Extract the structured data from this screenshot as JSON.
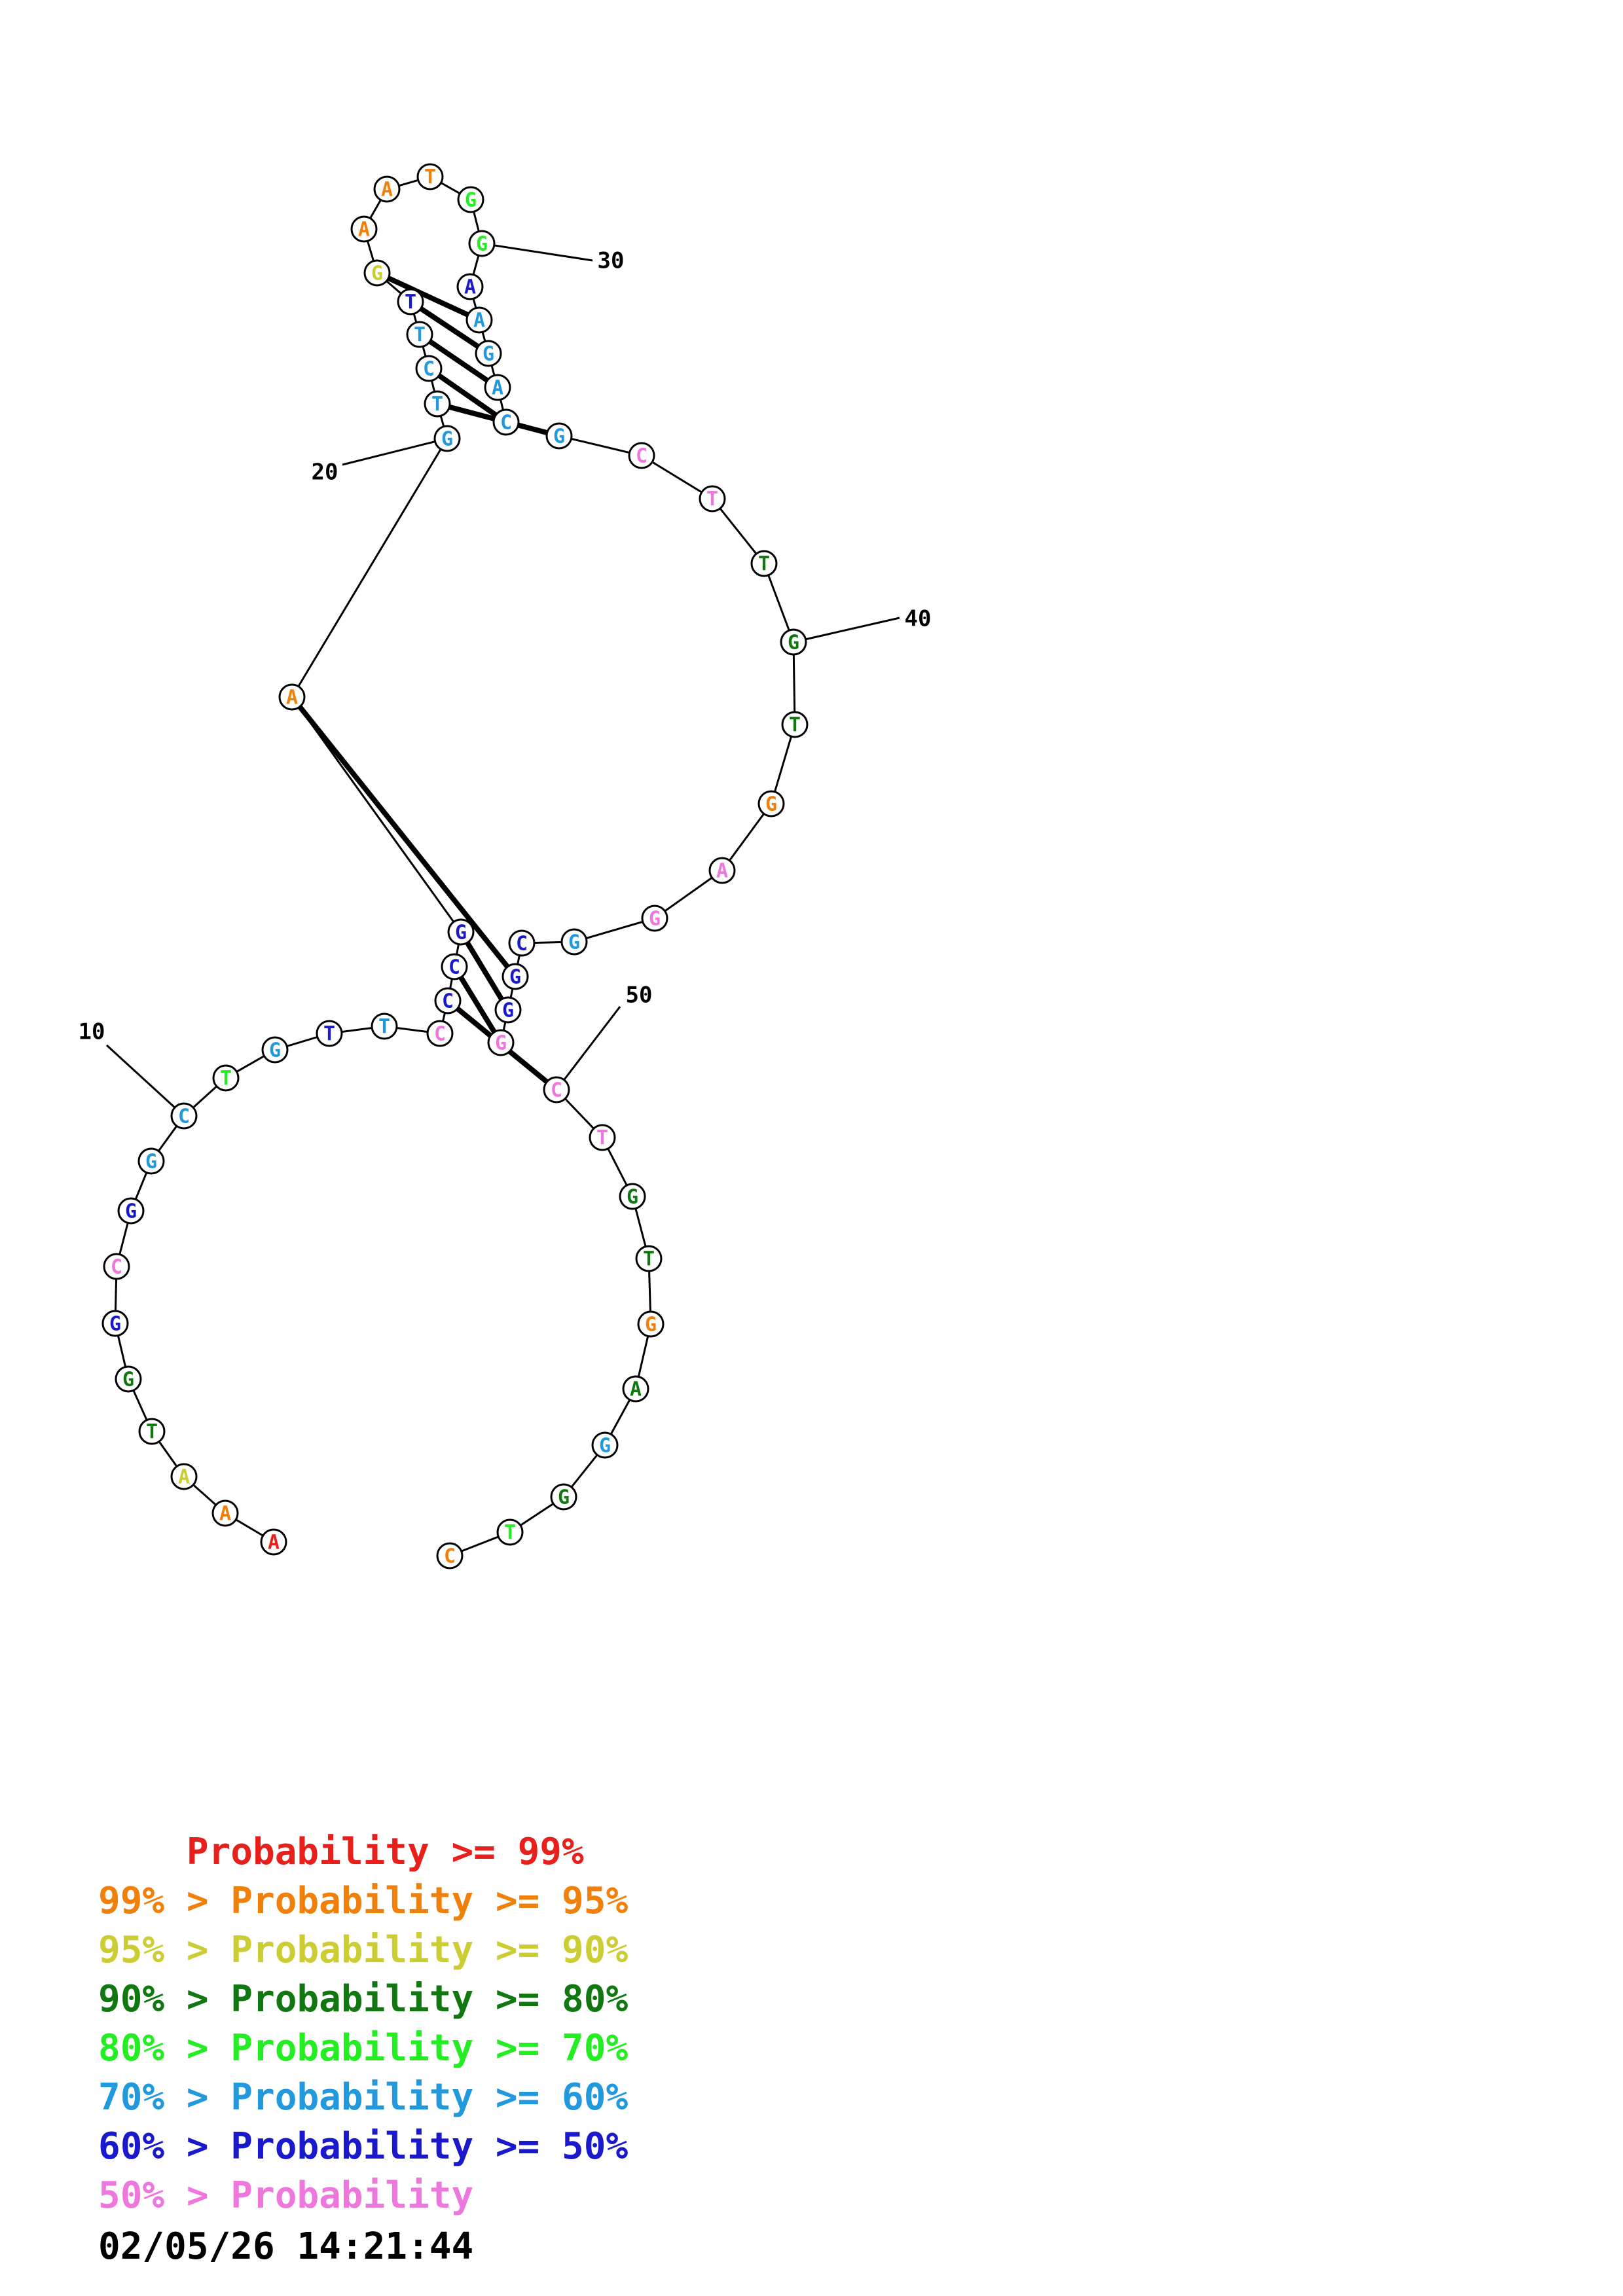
{
  "colors": {
    "red": "#e8201c",
    "orange": "#f0800a",
    "yellow": "#cccc33",
    "darkgreen": "#117711",
    "green": "#22ee22",
    "cyan": "#2299dd",
    "blue": "#1a1acc",
    "pink": "#ee77dd"
  },
  "structure": {
    "nucleotides": [
      {
        "base": "A",
        "color": "red"
      },
      {
        "base": "A",
        "color": "orange"
      },
      {
        "base": "A",
        "color": "yellow"
      },
      {
        "base": "T",
        "color": "darkgreen"
      },
      {
        "base": "G",
        "color": "darkgreen"
      },
      {
        "base": "G",
        "color": "blue"
      },
      {
        "base": "C",
        "color": "pink"
      },
      {
        "base": "G",
        "color": "blue"
      },
      {
        "base": "G",
        "color": "cyan"
      },
      {
        "base": "C",
        "color": "cyan"
      },
      {
        "base": "T",
        "color": "green"
      },
      {
        "base": "G",
        "color": "cyan"
      },
      {
        "base": "T",
        "color": "blue"
      },
      {
        "base": "T",
        "color": "cyan"
      },
      {
        "base": "C",
        "color": "pink"
      },
      {
        "base": "C",
        "color": "blue"
      },
      {
        "base": "C",
        "color": "blue"
      },
      {
        "base": "G",
        "color": "blue"
      },
      {
        "base": "A",
        "color": "orange"
      },
      {
        "base": "G",
        "color": "cyan"
      },
      {
        "base": "T",
        "color": "cyan"
      },
      {
        "base": "C",
        "color": "cyan"
      },
      {
        "base": "T",
        "color": "cyan"
      },
      {
        "base": "T",
        "color": "blue"
      },
      {
        "base": "G",
        "color": "yellow"
      },
      {
        "base": "A",
        "color": "orange"
      },
      {
        "base": "A",
        "color": "orange"
      },
      {
        "base": "T",
        "color": "orange"
      },
      {
        "base": "G",
        "color": "green"
      },
      {
        "base": "G",
        "color": "green"
      },
      {
        "base": "A",
        "color": "blue"
      },
      {
        "base": "A",
        "color": "cyan"
      },
      {
        "base": "G",
        "color": "cyan"
      },
      {
        "base": "A",
        "color": "cyan"
      },
      {
        "base": "C",
        "color": "cyan"
      },
      {
        "base": "G",
        "color": "cyan"
      },
      {
        "base": "C",
        "color": "pink"
      },
      {
        "base": "T",
        "color": "pink"
      },
      {
        "base": "T",
        "color": "darkgreen"
      },
      {
        "base": "G",
        "color": "darkgreen"
      },
      {
        "base": "T",
        "color": "darkgreen"
      },
      {
        "base": "G",
        "color": "orange"
      },
      {
        "base": "A",
        "color": "pink"
      },
      {
        "base": "G",
        "color": "pink"
      },
      {
        "base": "G",
        "color": "cyan"
      },
      {
        "base": "C",
        "color": "blue"
      },
      {
        "base": "G",
        "color": "blue"
      },
      {
        "base": "G",
        "color": "blue"
      },
      {
        "base": "G",
        "color": "pink"
      },
      {
        "base": "C",
        "color": "pink"
      },
      {
        "base": "T",
        "color": "pink"
      },
      {
        "base": "G",
        "color": "darkgreen"
      },
      {
        "base": "T",
        "color": "darkgreen"
      },
      {
        "base": "G",
        "color": "orange"
      },
      {
        "base": "A",
        "color": "darkgreen"
      },
      {
        "base": "G",
        "color": "cyan"
      },
      {
        "base": "G",
        "color": "darkgreen"
      },
      {
        "base": "T",
        "color": "green"
      },
      {
        "base": "C",
        "color": "orange"
      }
    ],
    "pairs": [
      [
        15,
        49
      ],
      [
        16,
        48
      ],
      [
        17,
        47
      ],
      [
        18,
        46
      ],
      [
        20,
        35
      ],
      [
        21,
        34
      ],
      [
        22,
        33
      ],
      [
        23,
        32
      ],
      [
        24,
        31
      ]
    ],
    "position_labels": [
      {
        "index": 10,
        "text": "10"
      },
      {
        "index": 20,
        "text": "20"
      },
      {
        "index": 30,
        "text": "30"
      },
      {
        "index": 40,
        "text": "40"
      },
      {
        "index": 50,
        "text": "50"
      }
    ]
  },
  "legend": [
    {
      "prefix": "    ",
      "text": "Probability >= 99%",
      "color": "red"
    },
    {
      "prefix": "99% > ",
      "text": "Probability >= 95%",
      "color": "orange"
    },
    {
      "prefix": "95% > ",
      "text": "Probability >= 90%",
      "color": "yellow"
    },
    {
      "prefix": "90% > ",
      "text": "Probability >= 80%",
      "color": "darkgreen"
    },
    {
      "prefix": "80% > ",
      "text": "Probability >= 70%",
      "color": "green"
    },
    {
      "prefix": "70% > ",
      "text": "Probability >= 60%",
      "color": "cyan"
    },
    {
      "prefix": "60% > ",
      "text": "Probability >= 50%",
      "color": "blue"
    },
    {
      "prefix": "50% > ",
      "text": "Probability",
      "color": "pink"
    }
  ],
  "timestamp": "02/05/26 14:21:44"
}
